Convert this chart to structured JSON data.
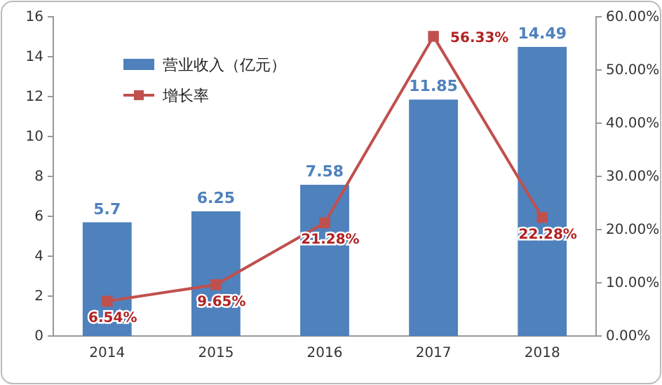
{
  "chart_data": {
    "type": "bar",
    "categories": [
      "2014",
      "2015",
      "2016",
      "2017",
      "2018"
    ],
    "series": [
      {
        "name": "营业收入（亿元）",
        "color": "#4f81bd",
        "values": [
          5.7,
          6.25,
          7.58,
          11.85,
          14.49
        ],
        "value_labels": [
          "5.7",
          "6.25",
          "7.58",
          "11.85",
          "14.49"
        ]
      },
      {
        "name": "增长率",
        "type": "line",
        "axis": "y2",
        "color": "#c0504d",
        "values": [
          6.54,
          9.65,
          21.28,
          56.33,
          22.28
        ],
        "value_labels": [
          "6.54%",
          "9.65%",
          "21.28%",
          "56.33%",
          "22.28%"
        ]
      }
    ],
    "ylim": [
      0,
      16
    ],
    "yticks": [
      0,
      2,
      4,
      6,
      8,
      10,
      12,
      14,
      16
    ],
    "y2lim": [
      0,
      60
    ],
    "y2ticks": [
      {
        "value": 0,
        "label": "0.00%"
      },
      {
        "value": 10,
        "label": "10.00%"
      },
      {
        "value": 20,
        "label": "20.00%"
      },
      {
        "value": 30,
        "label": "30.00%"
      },
      {
        "value": 40,
        "label": "40.00%"
      },
      {
        "value": 50,
        "label": "50.00%"
      },
      {
        "value": 60,
        "label": "60.00%"
      }
    ],
    "legend": "top left",
    "marker": "square",
    "grid": false
  }
}
